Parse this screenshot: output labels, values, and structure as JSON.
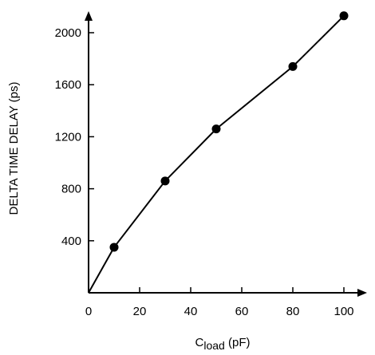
{
  "chart_data": {
    "type": "line",
    "title": "",
    "xlabel": {
      "main": "C",
      "subscript": "load",
      "unit": " (pF)"
    },
    "ylabel": "DELTA TIME DELAY (ps)",
    "xlim": [
      0,
      110
    ],
    "ylim": [
      0,
      2200
    ],
    "x_ticks": [
      0,
      20,
      40,
      60,
      80,
      100
    ],
    "y_ticks": [
      400,
      800,
      1200,
      1600,
      2000
    ],
    "grid": false,
    "markers": true,
    "series": [
      {
        "x": [
          0,
          10,
          30,
          50,
          80,
          100
        ],
        "y": [
          0,
          350,
          860,
          1260,
          1740,
          2130
        ]
      }
    ],
    "colors": {
      "line": "#000000",
      "marker": "#000000",
      "background": "#ffffff"
    }
  }
}
